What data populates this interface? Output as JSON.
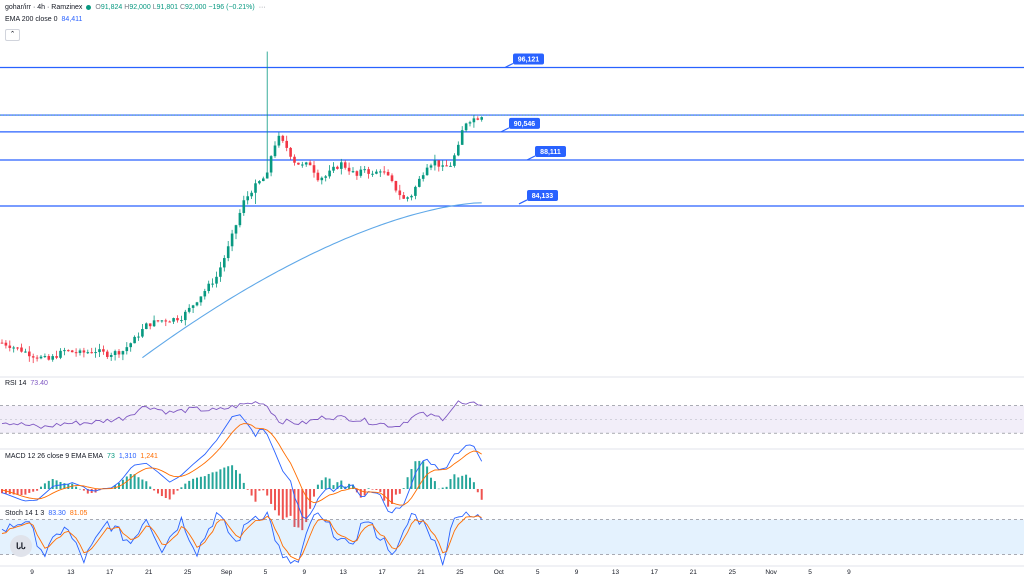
{
  "header": {
    "symbol": "gohar/irr · 4h · Ramzinex",
    "ohlc": {
      "o_label": "O",
      "o": "91,824",
      "h_label": "H",
      "h": "92,000",
      "l_label": "L",
      "l": "91,801",
      "c_label": "C",
      "c": "92,000",
      "change": "−196 (−0.21%)"
    },
    "more": "···",
    "ema_label": "EMA 200 close 0",
    "ema_value": "84,411",
    "collapse_icon": "chevron-up-icon"
  },
  "colors": {
    "up": "#089981",
    "down": "#f23645",
    "hline": "#2962ff",
    "ema": "#5fa8e8",
    "rsi": "#7e57c2",
    "macd": "#2962ff",
    "signal": "#ff6d00",
    "stoch_k": "#2962ff",
    "stoch_d": "#ff6d00"
  },
  "indicators": {
    "rsi": {
      "label": "RSI 14",
      "value": "73.40"
    },
    "macd": {
      "label": "MACD 12 26 close 9 EMA EMA",
      "v1": "73",
      "v2": "1,310",
      "v3": "1,241"
    },
    "stoch": {
      "label": "Stoch 14 1 3",
      "k": "83.30",
      "d": "81.05"
    }
  },
  "logo_text": "ᏓᏓ",
  "chart_data": {
    "type": "candlestick",
    "title": "gohar/irr · 4h · Ramzinex",
    "y_range": [
      69500,
      98500
    ],
    "x_ticks": [
      "9",
      "13",
      "17",
      "21",
      "25",
      "Sep",
      "5",
      "9",
      "13",
      "17",
      "21",
      "25",
      "Oct",
      "5",
      "9",
      "13",
      "17",
      "21",
      "25",
      "Nov",
      "5",
      "9"
    ],
    "price_levels": [
      96121,
      90546,
      88111,
      84133
    ],
    "price_level_labels": [
      "96,121",
      "90,546",
      "88,111",
      "84,133"
    ],
    "extra_level": 92000,
    "last_price": 92000,
    "ema200": {
      "start": 71000,
      "end": 84411
    },
    "price_path": [
      [
        0,
        72300
      ],
      [
        4,
        71800
      ],
      [
        8,
        71200
      ],
      [
        12,
        70800
      ],
      [
        16,
        71600
      ],
      [
        20,
        71400
      ],
      [
        24,
        71600
      ],
      [
        27,
        71300
      ],
      [
        31,
        71600
      ],
      [
        34,
        72600
      ],
      [
        37,
        73800
      ],
      [
        40,
        74200
      ],
      [
        43,
        74300
      ],
      [
        46,
        74500
      ],
      [
        48,
        75200
      ],
      [
        50,
        76000
      ],
      [
        53,
        77200
      ],
      [
        55,
        78000
      ],
      [
        58,
        80500
      ],
      [
        60,
        82500
      ],
      [
        62,
        84500
      ],
      [
        64,
        85500
      ],
      [
        66,
        86200
      ],
      [
        68,
        86800
      ],
      [
        69,
        88500
      ],
      [
        70,
        89500
      ],
      [
        71,
        90000
      ],
      [
        73,
        89200
      ],
      [
        75,
        88000
      ],
      [
        77,
        87600
      ],
      [
        79,
        87800
      ],
      [
        81,
        86600
      ],
      [
        83,
        86700
      ],
      [
        85,
        87300
      ],
      [
        87,
        87800
      ],
      [
        89,
        87300
      ],
      [
        91,
        86700
      ],
      [
        93,
        87400
      ],
      [
        95,
        86800
      ],
      [
        97,
        87300
      ],
      [
        99,
        86600
      ],
      [
        101,
        85600
      ],
      [
        103,
        84700
      ],
      [
        105,
        85100
      ],
      [
        107,
        86400
      ],
      [
        109,
        87700
      ],
      [
        111,
        88000
      ],
      [
        113,
        87400
      ],
      [
        115,
        87700
      ],
      [
        117,
        89200
      ],
      [
        118,
        90600
      ],
      [
        119,
        91400
      ],
      [
        120,
        91600
      ],
      [
        121,
        91700
      ],
      [
        122,
        91800
      ],
      [
        123,
        92000
      ]
    ],
    "rsi_range": [
      20,
      90
    ],
    "rsi_bands": [
      70,
      30
    ],
    "rsi_path": [
      [
        0,
        47
      ],
      [
        6,
        42
      ],
      [
        10,
        38
      ],
      [
        16,
        44
      ],
      [
        24,
        46
      ],
      [
        31,
        52
      ],
      [
        37,
        70
      ],
      [
        43,
        60
      ],
      [
        49,
        65
      ],
      [
        55,
        63
      ],
      [
        62,
        72
      ],
      [
        66,
        76
      ],
      [
        68,
        70
      ],
      [
        71,
        48
      ],
      [
        77,
        44
      ],
      [
        83,
        54
      ],
      [
        89,
        52
      ],
      [
        95,
        46
      ],
      [
        101,
        40
      ],
      [
        107,
        58
      ],
      [
        113,
        52
      ],
      [
        117,
        75
      ],
      [
        119,
        70
      ],
      [
        122,
        73.4
      ],
      [
        123,
        73.4
      ]
    ],
    "stoch_range": [
      0,
      100
    ],
    "stoch_bands": [
      80,
      20
    ],
    "stoch_path": [
      [
        0,
        60
      ],
      [
        6,
        80
      ],
      [
        11,
        20
      ],
      [
        16,
        70
      ],
      [
        21,
        10
      ],
      [
        27,
        75
      ],
      [
        33,
        40
      ],
      [
        37,
        85
      ],
      [
        41,
        30
      ],
      [
        46,
        80
      ],
      [
        50,
        25
      ],
      [
        55,
        90
      ],
      [
        60,
        40
      ],
      [
        64,
        85
      ],
      [
        68,
        90
      ],
      [
        72,
        10
      ],
      [
        76,
        5
      ],
      [
        80,
        90
      ],
      [
        85,
        60
      ],
      [
        89,
        30
      ],
      [
        93,
        80
      ],
      [
        97,
        50
      ],
      [
        101,
        20
      ],
      [
        105,
        90
      ],
      [
        109,
        70
      ],
      [
        113,
        5
      ],
      [
        116,
        90
      ],
      [
        119,
        85
      ],
      [
        122,
        83.3
      ],
      [
        123,
        83.3
      ]
    ]
  }
}
